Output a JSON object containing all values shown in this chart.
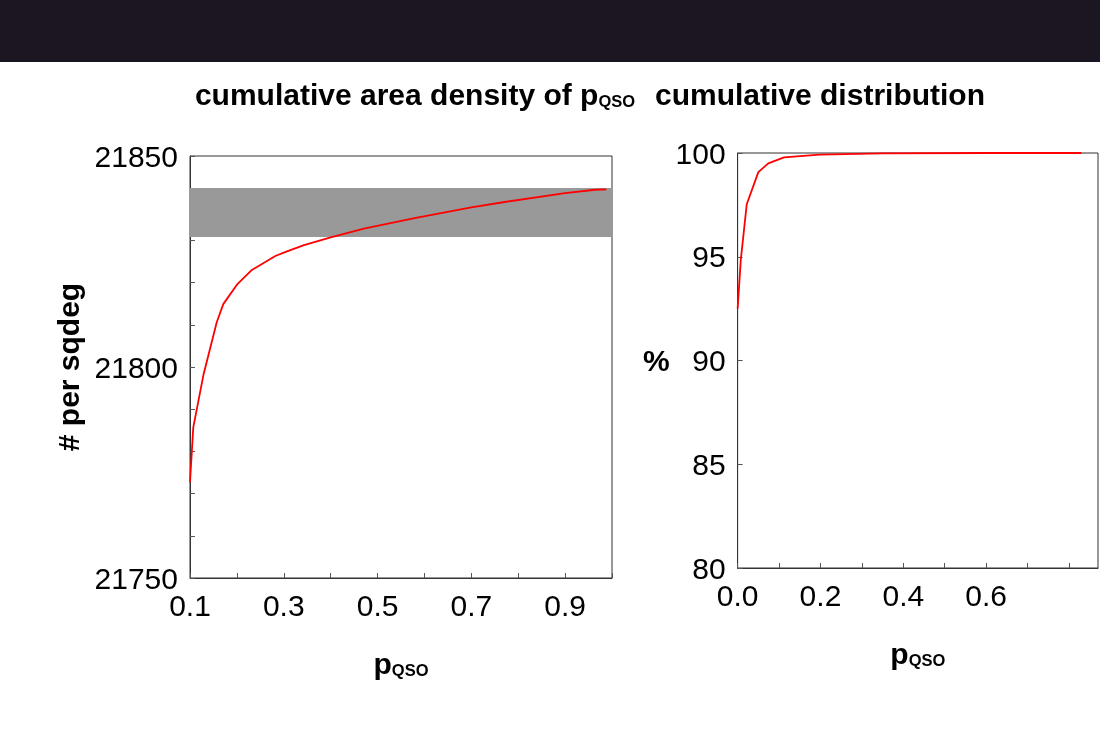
{
  "chart_data": [
    {
      "type": "line",
      "title": "cumulative area density of p$_{QSO}$",
      "xlabel": "p$_{QSO}$",
      "ylabel": "# per sqdeg",
      "x": [
        0.1,
        0.107,
        0.129,
        0.157,
        0.171,
        0.2,
        0.232,
        0.282,
        0.304,
        0.343,
        0.4,
        0.471,
        0.579,
        0.7,
        0.771,
        0.9,
        0.964,
        0.988
      ],
      "series": [
        {
          "color": "#ff0000",
          "values": [
            21772.7,
            21785.7,
            21798.3,
            21810.6,
            21814.9,
            21819.5,
            21823.0,
            21826.3,
            21827.3,
            21828.9,
            21830.7,
            21832.8,
            21835.3,
            21837.8,
            21839.1,
            21841.2,
            21842.0,
            21842.1
          ]
        }
      ],
      "xlim": [
        0.1,
        1.0
      ],
      "xticks": [
        {
          "value": 0.1,
          "label": "0.1"
        },
        {
          "value": 0.2,
          "label": null
        },
        {
          "value": 0.3,
          "label": "0.3"
        },
        {
          "value": 0.4,
          "label": null
        },
        {
          "value": 0.5,
          "label": "0.5"
        },
        {
          "value": 0.6,
          "label": null
        },
        {
          "value": 0.7,
          "label": "0.7"
        },
        {
          "value": 0.8,
          "label": null
        },
        {
          "value": 0.9,
          "label": "0.9"
        },
        {
          "value": 1.0,
          "label": null
        }
      ],
      "ylim": [
        21750,
        21850
      ],
      "yticks": [
        21750,
        {
          "value": 21760,
          "label": null
        },
        {
          "value": 21770,
          "label": null
        },
        {
          "value": 21780,
          "label": null
        },
        {
          "value": 21790,
          "label": null
        },
        21800,
        {
          "value": 21810,
          "label": null
        },
        {
          "value": 21820,
          "label": null
        },
        {
          "value": 21830,
          "label": null
        },
        {
          "value": 21840,
          "label": null
        },
        21850
      ],
      "bands": [
        {
          "axis": "y",
          "from": 21830.8,
          "to": 21842.4,
          "color": "#999999"
        }
      ],
      "marker": "none",
      "line_style": "solid"
    },
    {
      "type": "line",
      "title": "cumulative distribution",
      "xlabel": "p$_{QSO}$",
      "ylabel": "%",
      "x": [
        0,
        0.0076,
        0.022,
        0.05,
        0.074,
        0.112,
        0.198,
        0.35,
        0.6,
        0.83
      ],
      "series": [
        {
          "color": "#ff0000",
          "values": [
            92.5,
            94.84,
            97.53,
            99.08,
            99.5,
            99.79,
            99.92,
            99.98,
            100,
            100
          ]
        }
      ],
      "xlim": [
        0,
        0.87
      ],
      "xticks": [
        {
          "value": 0,
          "label": "0.0"
        },
        {
          "value": 0.1,
          "label": null
        },
        {
          "value": 0.2,
          "label": "0.2"
        },
        {
          "value": 0.3,
          "label": null
        },
        {
          "value": 0.4,
          "label": "0.4"
        },
        {
          "value": 0.5,
          "label": null
        },
        {
          "value": 0.6,
          "label": "0.6"
        },
        {
          "value": 0.7,
          "label": null
        },
        {
          "value": 0.8,
          "label": null
        }
      ],
      "ylim": [
        80,
        100
      ],
      "yticks": [
        80,
        85,
        90,
        95,
        100
      ],
      "marker": "none",
      "line_style": "solid"
    }
  ]
}
